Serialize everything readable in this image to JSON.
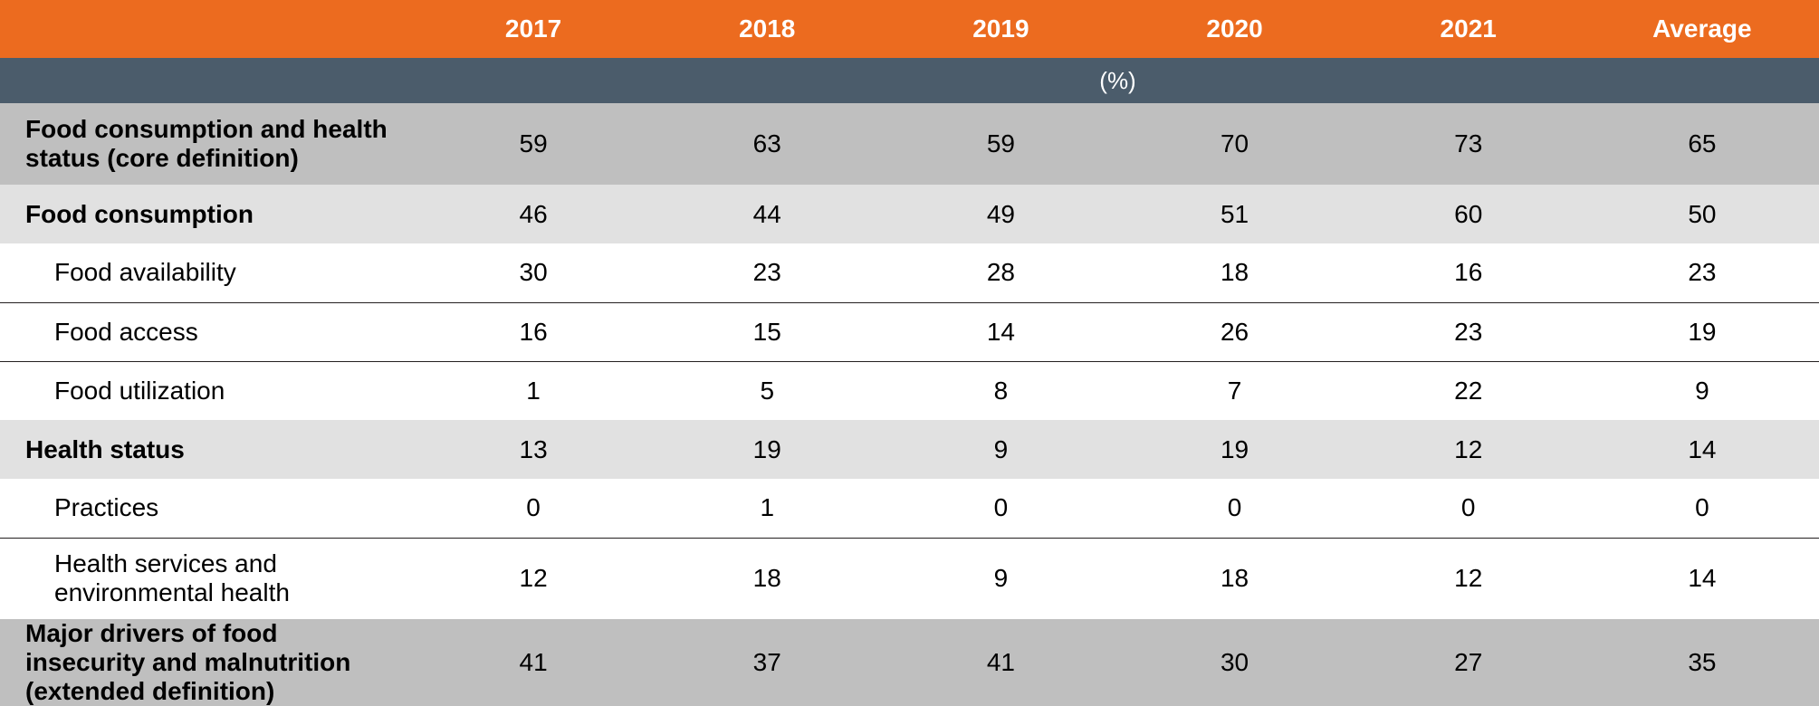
{
  "columns": [
    "2017",
    "2018",
    "2019",
    "2020",
    "2021",
    "Average"
  ],
  "unit": "(%)",
  "rows": [
    {
      "label": "Food consumption and health status (core definition)",
      "indent": 1,
      "band": "dark",
      "tall": true,
      "rule": false,
      "values": [
        "59",
        "63",
        "59",
        "70",
        "73",
        "65"
      ]
    },
    {
      "label": "Food consumption",
      "indent": 1,
      "band": "mid",
      "tall": false,
      "rule": false,
      "values": [
        "46",
        "44",
        "49",
        "51",
        "60",
        "50"
      ]
    },
    {
      "label": "Food availability",
      "indent": 2,
      "band": "white",
      "tall": false,
      "rule": true,
      "values": [
        "30",
        "23",
        "28",
        "18",
        "16",
        "23"
      ]
    },
    {
      "label": "Food access",
      "indent": 2,
      "band": "white",
      "tall": false,
      "rule": true,
      "values": [
        "16",
        "15",
        "14",
        "26",
        "23",
        "19"
      ]
    },
    {
      "label": "Food utilization",
      "indent": 2,
      "band": "white",
      "tall": false,
      "rule": false,
      "values": [
        "1",
        "5",
        "8",
        "7",
        "22",
        "9"
      ]
    },
    {
      "label": "Health status",
      "indent": 1,
      "band": "mid",
      "tall": false,
      "rule": false,
      "values": [
        "13",
        "19",
        "9",
        "19",
        "12",
        "14"
      ]
    },
    {
      "label": "Practices",
      "indent": 2,
      "band": "white",
      "tall": false,
      "rule": true,
      "values": [
        "0",
        "1",
        "0",
        "0",
        "0",
        "0"
      ]
    },
    {
      "label": "Health services and environmental health",
      "indent": 2,
      "band": "white",
      "tall": true,
      "rule": false,
      "values": [
        "12",
        "18",
        "9",
        "18",
        "12",
        "14"
      ]
    },
    {
      "label": "Major drivers of food insecurity and malnutrition (extended definition)",
      "indent": 1,
      "band": "dark",
      "tall": true,
      "rule": false,
      "values": [
        "41",
        "37",
        "41",
        "30",
        "27",
        "35"
      ]
    }
  ],
  "colors": {
    "header_bg": "#ec6b1f",
    "unit_bg": "#4b5c6b",
    "band_dark": "#bfbfbf",
    "band_mid": "#e1e1e1",
    "band_white": "#ffffff",
    "rule": "#231f20"
  }
}
